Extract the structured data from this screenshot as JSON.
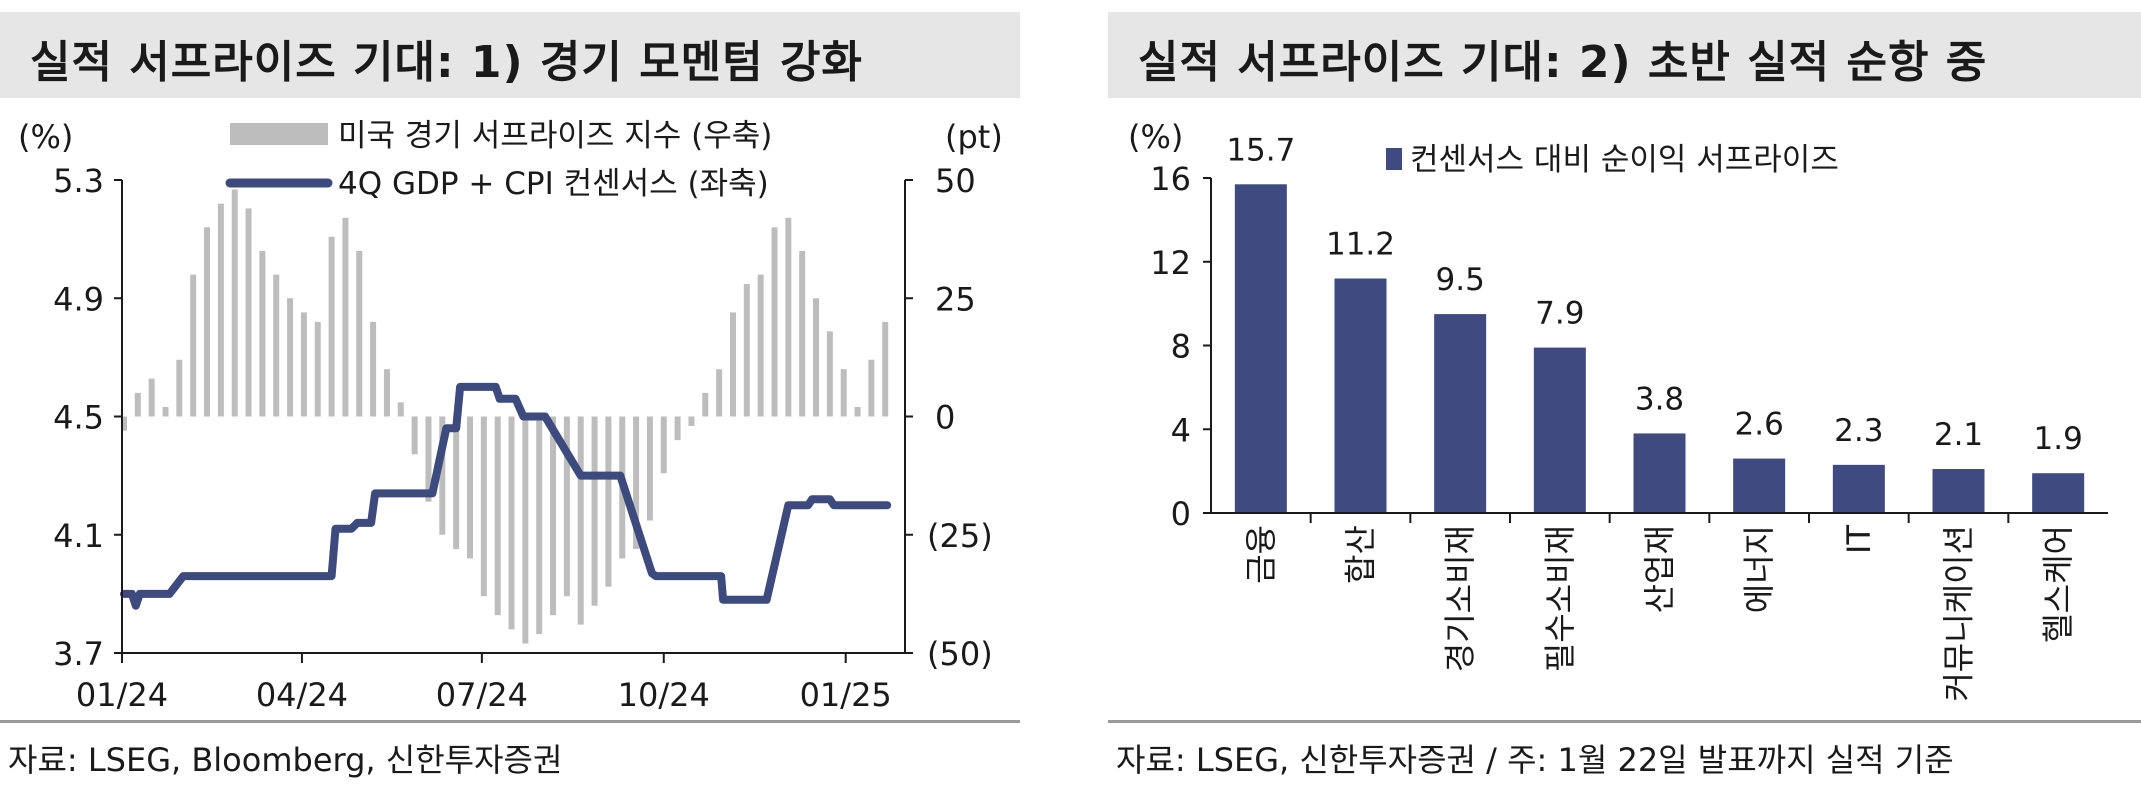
{
  "left": {
    "title": "실적 서프라이즈 기대: 1) 경기 모멘텀 강화",
    "source": "자료: LSEG, Bloomberg, 신한투자증권",
    "chart_data": {
      "type": "line",
      "left_axis_unit": "(%)",
      "right_axis_unit": "(pt)",
      "left_ticks": [
        "5.3",
        "4.9",
        "4.5",
        "4.1",
        "3.7"
      ],
      "right_ticks": [
        "50",
        "25",
        "0",
        "(25)",
        "(50)"
      ],
      "x_ticks": [
        "01/24",
        "04/24",
        "07/24",
        "10/24",
        "01/25"
      ],
      "ylim_left": [
        3.7,
        5.3
      ],
      "ylim_right": [
        -50,
        50
      ],
      "series": [
        {
          "name": "미국 경기 서프라이즈 지수 (우축)",
          "axis": "right",
          "type": "bar",
          "color": "#bdbdbd",
          "x": [
            "2024-01-02",
            "2024-01-09",
            "2024-01-16",
            "2024-01-23",
            "2024-01-30",
            "2024-02-06",
            "2024-02-13",
            "2024-02-20",
            "2024-02-27",
            "2024-03-05",
            "2024-03-12",
            "2024-03-19",
            "2024-03-26",
            "2024-04-02",
            "2024-04-09",
            "2024-04-16",
            "2024-04-23",
            "2024-04-30",
            "2024-05-07",
            "2024-05-14",
            "2024-05-21",
            "2024-05-28",
            "2024-06-04",
            "2024-06-11",
            "2024-06-18",
            "2024-06-25",
            "2024-07-02",
            "2024-07-09",
            "2024-07-16",
            "2024-07-23",
            "2024-07-30",
            "2024-08-06",
            "2024-08-13",
            "2024-08-20",
            "2024-08-27",
            "2024-09-03",
            "2024-09-10",
            "2024-09-17",
            "2024-09-24",
            "2024-10-01",
            "2024-10-08",
            "2024-10-15",
            "2024-10-22",
            "2024-10-29",
            "2024-11-05",
            "2024-11-12",
            "2024-11-19",
            "2024-11-26",
            "2024-12-03",
            "2024-12-10",
            "2024-12-17",
            "2024-12-24",
            "2024-12-31",
            "2025-01-07",
            "2025-01-14",
            "2025-01-21"
          ],
          "values": [
            -3,
            5,
            8,
            2,
            12,
            30,
            40,
            45,
            48,
            44,
            35,
            30,
            25,
            22,
            20,
            38,
            42,
            35,
            20,
            10,
            3,
            -8,
            -18,
            -25,
            -28,
            -30,
            -38,
            -42,
            -45,
            -48,
            -46,
            -42,
            -38,
            -44,
            -40,
            -36,
            -30,
            -28,
            -22,
            -12,
            -5,
            -2,
            5,
            10,
            22,
            28,
            30,
            40,
            42,
            35,
            25,
            18,
            10,
            2,
            12,
            20
          ]
        },
        {
          "name": "4Q GDP + CPI 컨센서스 (좌축)",
          "axis": "left",
          "type": "line",
          "color": "#3c4a7d",
          "x": [
            "2024-01-02",
            "2024-01-06",
            "2024-01-08",
            "2024-01-10",
            "2024-01-13",
            "2024-01-25",
            "2024-02-01",
            "2024-02-20",
            "2024-03-05",
            "2024-03-20",
            "2024-04-02",
            "2024-04-16",
            "2024-04-18",
            "2024-04-26",
            "2024-04-29",
            "2024-05-06",
            "2024-05-08",
            "2024-05-20",
            "2024-06-04",
            "2024-06-06",
            "2024-06-13",
            "2024-06-18",
            "2024-06-20",
            "2024-07-08",
            "2024-07-10",
            "2024-07-18",
            "2024-07-22",
            "2024-07-26",
            "2024-08-02",
            "2024-08-20",
            "2024-08-26",
            "2024-08-28",
            "2024-09-06",
            "2024-09-09",
            "2024-09-25",
            "2024-09-27",
            "2024-10-15",
            "2024-10-30",
            "2024-10-31",
            "2024-11-04",
            "2024-11-05",
            "2024-11-06",
            "2024-11-20",
            "2024-11-21",
            "2024-11-22",
            "2024-12-03",
            "2024-12-04",
            "2024-12-13",
            "2024-12-15",
            "2024-12-24",
            "2024-12-26",
            "2025-01-22"
          ],
          "values": [
            3.9,
            3.9,
            3.86,
            3.9,
            3.9,
            3.9,
            3.96,
            3.96,
            3.96,
            3.96,
            3.96,
            3.96,
            4.12,
            4.12,
            4.14,
            4.14,
            4.24,
            4.24,
            4.24,
            4.24,
            4.46,
            4.46,
            4.6,
            4.6,
            4.56,
            4.56,
            4.5,
            4.5,
            4.5,
            4.3,
            4.3,
            4.3,
            4.3,
            4.3,
            3.97,
            3.96,
            3.96,
            3.96,
            3.88,
            3.88,
            3.88,
            3.88,
            3.88,
            3.88,
            3.88,
            4.2,
            4.2,
            4.2,
            4.22,
            4.22,
            4.2,
            4.2
          ]
        }
      ]
    }
  },
  "right": {
    "title": "실적 서프라이즈 기대: 2) 초반 실적 순항 중",
    "source": "자료: LSEG, 신한투자증권 / 주: 1월 22일 발표까지 실적 기준",
    "chart_data": {
      "type": "bar",
      "y_unit": "(%)",
      "y_ticks": [
        "16",
        "12",
        "8",
        "4",
        "0"
      ],
      "ylim": [
        0,
        16
      ],
      "legend": "컨센서스 대비 순이익 서프라이즈",
      "color": "#3f4b80",
      "categories": [
        "금융",
        "합산",
        "경기소비재",
        "필수소비재",
        "산업재",
        "에너지",
        "IT",
        "커뮤니케이션",
        "헬스케어"
      ],
      "values": [
        15.7,
        11.2,
        9.5,
        7.9,
        3.8,
        2.6,
        2.3,
        2.1,
        1.9
      ],
      "value_labels": [
        "15.7",
        "11.2",
        "9.5",
        "7.9",
        "3.8",
        "2.6",
        "2.3",
        "2.1",
        "1.9"
      ]
    }
  }
}
